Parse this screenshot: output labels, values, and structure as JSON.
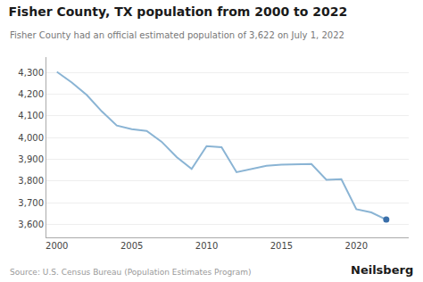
{
  "chart_data": {
    "type": "line",
    "title": "Fisher County, TX population from 2000 to 2022",
    "subtitle": "Fisher County had an official estimated population of 3,622 on July 1, 2022",
    "annotations": [
      {
        "text": "Source: U.S. Census Bureau (Population Estimates Program)"
      },
      {
        "text": "Neilsberg"
      }
    ],
    "x": [
      2000,
      2001,
      2002,
      2003,
      2004,
      2005,
      2006,
      2007,
      2008,
      2009,
      2010,
      2011,
      2012,
      2013,
      2014,
      2015,
      2016,
      2017,
      2018,
      2019,
      2020,
      2021,
      2022
    ],
    "series": [
      {
        "type": "line",
        "color": "#8ab4d4",
        "values": [
          4302,
          4253,
          4195,
          4120,
          4055,
          4038,
          4030,
          3980,
          3910,
          3855,
          3960,
          3955,
          3840,
          3855,
          3870,
          3875,
          3878,
          3878,
          3805,
          3808,
          3670,
          3655,
          3622
        ]
      },
      {
        "type": "scatter",
        "color": "#3a6faa",
        "values": [
          null,
          null,
          null,
          null,
          null,
          null,
          null,
          null,
          null,
          null,
          null,
          null,
          null,
          null,
          null,
          null,
          null,
          null,
          null,
          null,
          null,
          null,
          3622
        ]
      }
    ],
    "xlim": [
      1999.3,
      2023.5
    ],
    "xticks": [
      2000,
      2005,
      2010,
      2015,
      2020
    ],
    "ylim": [
      3540,
      4370
    ],
    "yticks": [
      {
        "value": 3600,
        "label": "3,600"
      },
      {
        "value": 3700,
        "label": "3,700"
      },
      {
        "value": 3800,
        "label": "3,800"
      },
      {
        "value": 3900,
        "label": "3,900"
      },
      {
        "value": 4000,
        "label": "4,000"
      },
      {
        "value": 4100,
        "label": "4,100"
      },
      {
        "value": 4200,
        "label": "4,200"
      },
      {
        "value": 4300,
        "label": "4,300"
      }
    ],
    "grid": "y"
  }
}
